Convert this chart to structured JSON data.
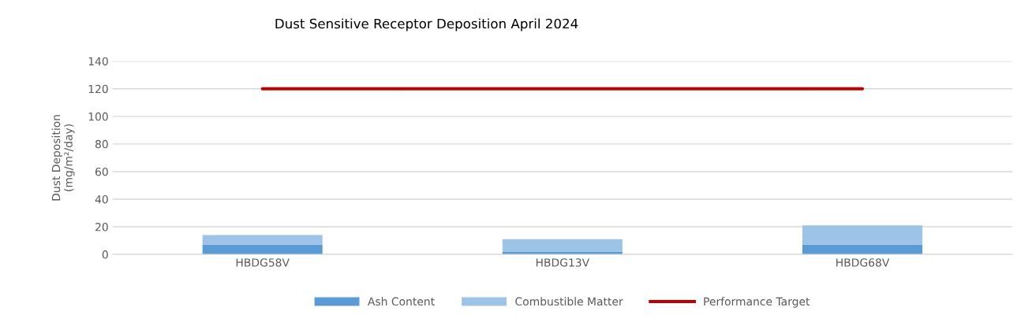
{
  "chart_data": {
    "type": "bar",
    "title": "Dust Sensitive Receptor Deposition April 2024",
    "ylabel": "Dust Deposition\n(mg/m²/day)",
    "categories": [
      "HBDG58V",
      "HBDG13V",
      "HBDG68V"
    ],
    "stacked": true,
    "series": [
      {
        "name": "Ash Content",
        "color": "#5b9bd5",
        "values": [
          7,
          2,
          7
        ]
      },
      {
        "name": "Combustible Matter",
        "color": "#9dc3e6",
        "values": [
          7,
          9,
          14
        ]
      },
      {
        "name": "Performance Target",
        "type": "line",
        "color": "#c00000",
        "values": [
          120,
          120,
          120
        ]
      }
    ],
    "ylim": [
      0,
      140
    ],
    "yticks": [
      0,
      20,
      40,
      60,
      80,
      100,
      120,
      140
    ],
    "grid": "y",
    "legend": "bottom"
  }
}
